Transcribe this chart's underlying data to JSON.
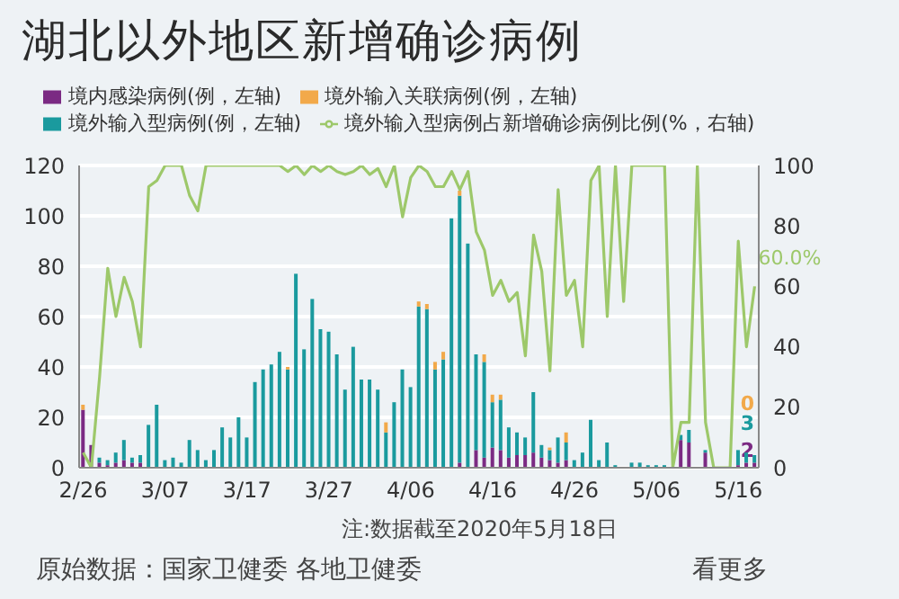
{
  "chart_data": {
    "type": "bar",
    "title": "湖北以外地区新增确诊病例",
    "categories": [
      "2/26",
      null,
      null,
      null,
      null,
      null,
      null,
      null,
      null,
      null,
      "3/07",
      null,
      null,
      null,
      null,
      null,
      null,
      null,
      null,
      null,
      "3/17",
      null,
      null,
      null,
      null,
      null,
      null,
      null,
      null,
      null,
      "3/27",
      null,
      null,
      null,
      null,
      null,
      null,
      null,
      null,
      null,
      "4/06",
      null,
      null,
      null,
      null,
      null,
      null,
      null,
      null,
      null,
      "4/16",
      null,
      null,
      null,
      null,
      null,
      null,
      null,
      null,
      null,
      "4/26",
      null,
      null,
      null,
      null,
      null,
      null,
      null,
      null,
      null,
      "5/06",
      null,
      null,
      null,
      null,
      null,
      null,
      null,
      null,
      null,
      "5/16",
      null,
      null
    ],
    "stacked": true,
    "series": [
      {
        "name": "境内感染病例(例，左轴)",
        "color": "#7b2a83",
        "values": [
          23,
          9,
          2,
          1,
          2,
          3,
          2,
          2,
          0,
          0,
          0,
          0,
          0,
          0,
          0,
          0,
          0,
          0,
          0,
          0,
          0,
          0,
          0,
          0,
          0,
          0,
          0,
          0,
          0,
          0,
          0,
          0,
          0,
          0,
          0,
          0,
          0,
          0,
          0,
          0,
          0,
          0,
          0,
          0,
          0,
          0,
          2,
          0,
          7,
          4,
          8,
          7,
          4,
          5,
          5,
          6,
          4,
          3,
          2,
          3,
          0,
          0,
          0,
          0,
          0,
          0,
          0,
          0,
          0,
          0,
          0,
          0,
          0,
          11,
          10,
          0,
          6,
          0,
          0,
          0,
          1,
          2,
          2
        ],
        "value_labels": [
          null,
          null,
          null,
          null,
          null,
          null,
          null,
          null,
          null,
          null,
          null,
          null,
          null,
          null,
          null,
          null,
          null,
          null,
          null,
          null,
          null,
          null,
          null,
          null,
          null,
          null,
          null,
          null,
          null,
          null,
          null,
          null,
          null,
          null,
          null,
          null,
          null,
          null,
          null,
          null,
          null,
          null,
          null,
          null,
          null,
          null,
          null,
          null,
          null,
          null,
          null,
          null,
          null,
          null,
          null,
          null,
          null,
          null,
          null,
          null,
          null,
          null,
          null,
          null,
          null,
          null,
          null,
          null,
          null,
          null,
          null,
          null,
          null,
          null,
          null,
          null,
          null,
          null,
          null,
          null,
          null,
          null,
          "2"
        ]
      },
      {
        "name": "境外输入型病例(例，左轴)",
        "color": "#1a9a9e",
        "values": [
          0,
          0,
          2,
          2,
          4,
          8,
          2,
          3,
          17,
          25,
          3,
          4,
          2,
          11,
          7,
          3,
          7,
          16,
          12,
          20,
          12,
          34,
          39,
          41,
          46,
          39,
          77,
          47,
          67,
          55,
          54,
          45,
          31,
          48,
          35,
          35,
          31,
          14,
          26,
          39,
          32,
          64,
          63,
          39,
          43,
          99,
          106,
          89,
          38,
          38,
          18,
          20,
          12,
          9,
          7,
          24,
          5,
          4,
          10,
          7,
          3,
          6,
          19,
          3,
          10,
          1,
          0,
          2,
          2,
          1,
          1,
          1,
          0,
          2,
          5,
          0,
          1,
          0,
          0,
          0,
          6,
          4,
          3
        ],
        "value_labels": [
          null,
          null,
          null,
          null,
          null,
          null,
          null,
          null,
          null,
          null,
          null,
          null,
          null,
          null,
          null,
          null,
          null,
          null,
          null,
          null,
          null,
          null,
          null,
          null,
          null,
          null,
          null,
          null,
          null,
          null,
          null,
          null,
          null,
          null,
          null,
          null,
          null,
          null,
          null,
          null,
          null,
          null,
          null,
          null,
          null,
          null,
          null,
          null,
          null,
          null,
          null,
          null,
          null,
          null,
          null,
          null,
          null,
          null,
          null,
          null,
          null,
          null,
          null,
          null,
          null,
          null,
          null,
          null,
          null,
          null,
          null,
          null,
          null,
          null,
          null,
          null,
          null,
          null,
          null,
          null,
          null,
          null,
          "3"
        ]
      },
      {
        "name": "境外输入关联病例(例，左轴)",
        "color": "#f2a94a",
        "values": [
          2,
          0,
          0,
          0,
          0,
          0,
          0,
          0,
          0,
          0,
          0,
          0,
          0,
          0,
          0,
          0,
          0,
          0,
          0,
          0,
          0,
          0,
          0,
          0,
          0,
          1,
          0,
          0,
          0,
          0,
          0,
          0,
          0,
          0,
          0,
          0,
          0,
          4,
          0,
          0,
          0,
          2,
          2,
          3,
          3,
          0,
          2,
          0,
          0,
          3,
          3,
          2,
          0,
          0,
          0,
          0,
          0,
          1,
          0,
          4,
          0,
          0,
          0,
          0,
          0,
          0,
          0,
          0,
          0,
          0,
          0,
          0,
          0,
          0,
          0,
          0,
          0,
          0,
          0,
          0,
          0,
          0,
          0
        ],
        "value_labels": [
          null,
          null,
          null,
          null,
          null,
          null,
          null,
          null,
          null,
          null,
          null,
          null,
          null,
          null,
          null,
          null,
          null,
          null,
          null,
          null,
          null,
          null,
          null,
          null,
          null,
          null,
          null,
          null,
          null,
          null,
          null,
          null,
          null,
          null,
          null,
          null,
          null,
          null,
          null,
          null,
          null,
          null,
          null,
          null,
          null,
          null,
          null,
          null,
          null,
          null,
          null,
          null,
          null,
          null,
          null,
          null,
          null,
          null,
          null,
          null,
          null,
          null,
          null,
          null,
          null,
          null,
          null,
          null,
          null,
          null,
          null,
          null,
          null,
          null,
          null,
          null,
          null,
          null,
          null,
          null,
          null,
          null,
          "0"
        ]
      },
      {
        "name": "境外输入型病例占新增确诊病例比例(%，右轴)",
        "type": "line",
        "axis": "y2",
        "color": "#9dc86a",
        "values": [
          5,
          0,
          30,
          66,
          50,
          63,
          55,
          40,
          93,
          95,
          100,
          100,
          100,
          90,
          85,
          100,
          100,
          100,
          100,
          100,
          100,
          100,
          100,
          100,
          100,
          98,
          100,
          97,
          100,
          98,
          100,
          98,
          97,
          98,
          100,
          97,
          99,
          93,
          100,
          83,
          96,
          100,
          98,
          93,
          93,
          98,
          92,
          98,
          78,
          72,
          57,
          62,
          55,
          58,
          37,
          77,
          65,
          32,
          92,
          57,
          62,
          40,
          95,
          100,
          50,
          100,
          55,
          100,
          100,
          100,
          100,
          100,
          0,
          15,
          15,
          100,
          15,
          0,
          0,
          0,
          75,
          40,
          60
        ],
        "value_labels": [
          null,
          null,
          null,
          null,
          null,
          null,
          null,
          null,
          null,
          null,
          null,
          null,
          null,
          null,
          null,
          null,
          null,
          null,
          null,
          null,
          null,
          null,
          null,
          null,
          null,
          null,
          null,
          null,
          null,
          null,
          null,
          null,
          null,
          null,
          null,
          null,
          null,
          null,
          null,
          null,
          null,
          null,
          null,
          null,
          null,
          null,
          null,
          null,
          null,
          null,
          null,
          null,
          null,
          null,
          null,
          null,
          null,
          null,
          null,
          null,
          null,
          null,
          null,
          null,
          null,
          null,
          null,
          null,
          null,
          null,
          null,
          null,
          null,
          null,
          null,
          null,
          null,
          null,
          null,
          null,
          null,
          null,
          "60.0%"
        ]
      }
    ],
    "ylim": [
      0,
      120
    ],
    "yticks": [
      0,
      20,
      40,
      60,
      80,
      100,
      120
    ],
    "y2lim": [
      0,
      100
    ],
    "y2ticks": [
      0,
      20,
      40,
      60,
      80,
      100
    ],
    "grid": "y",
    "legend": "top left",
    "annotations": [
      "注:数据截至2020年5月18日",
      "原始数据：国家卫健委 各地卫健委",
      "看更多"
    ]
  }
}
